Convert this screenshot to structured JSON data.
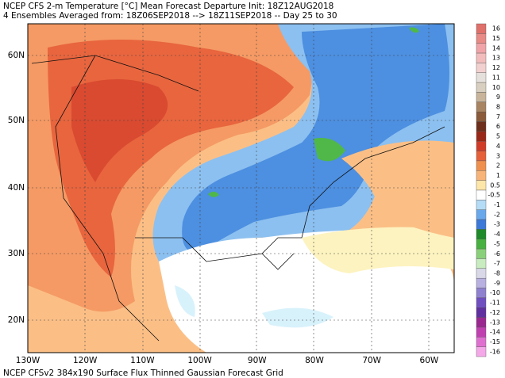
{
  "header": {
    "line1": "NCEP CFS 2-m Temperature [°C] Mean Forecast Departure Init: 18Z12AUG2018",
    "line2": "4 Ensembles Averaged from: 18Z06SEP2018 --> 18Z11SEP2018 -- Day 25 to 30"
  },
  "map": {
    "lat_labels": [
      "60N",
      "50N",
      "40N",
      "30N",
      "20N"
    ],
    "lon_labels": [
      "130W",
      "120W",
      "110W",
      "100W",
      "90W",
      "80W",
      "70W",
      "60W"
    ]
  },
  "colorbar": {
    "labels": [
      16,
      15,
      14,
      13,
      12,
      11,
      10,
      9,
      8,
      7,
      6,
      5,
      4,
      3,
      2,
      1,
      0.5,
      -0.5,
      -1,
      -2,
      -3,
      -4,
      -5,
      -6,
      -7,
      -8,
      -9,
      -10,
      -11,
      -12,
      -13,
      -14,
      -15,
      -16
    ],
    "colors": [
      "#e0706a",
      "#e88a86",
      "#f0a4a8",
      "#f3bcbc",
      "#f3d0d0",
      "#e6e0dc",
      "#d8cfc0",
      "#c8b49a",
      "#a88462",
      "#8a5a3a",
      "#6e2e1c",
      "#9a2818",
      "#d03c28",
      "#e6603a",
      "#f0904e",
      "#f8b478",
      "#fde6a8",
      "#ffffff",
      "#b4dcf6",
      "#6aa8ec",
      "#3c78d8",
      "#1f8a2a",
      "#48b040",
      "#8ad07a",
      "#c8ecc0",
      "#d8d8e8",
      "#b8b0e0",
      "#9080d0",
      "#7050c0",
      "#6030a0",
      "#9a2890",
      "#c040b0",
      "#e070d0",
      "#f4a8e8"
    ]
  },
  "footer": "NCEP CFSv2 384x190 Surface Flux Thinned Gaussian Forecast Grid"
}
